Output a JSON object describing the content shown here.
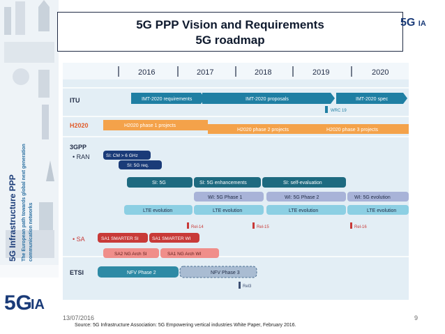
{
  "slide": {
    "title_line1": "5G PPP Vision and Requirements",
    "title_line2": "5G roadmap",
    "date": "13/07/2016",
    "page_number": "9",
    "source": "Source: 5G Infrastructure Association: 5G Empowering vertical industries White Paper, February 2016.",
    "logo_mark": "5G",
    "logo_suffix": "IA",
    "sidebar_tagline": [
      "5G Infrastructure PPP",
      "The European path towards global next generation",
      "communication networks"
    ]
  },
  "roadmap": {
    "years": [
      "2016",
      "2017",
      "2018",
      "2019",
      "2020"
    ],
    "rows": {
      "itu": "ITU",
      "h2020": "H2020",
      "gpp": "3GPP",
      "ran": "• RAN",
      "sa": "• SA",
      "etsi": "ETSI"
    },
    "bars": {
      "imt_requirements": "IMT-2020 requirements",
      "imt_proposals": "IMT-2020 proposals",
      "imt_spec": "IMT-2020 spec",
      "wrc19": "WRC 19",
      "h2020_phase1": "H2020 phase 1 projects",
      "h2020_phase2": "H2020 phase 2 projects",
      "h2020_phase3": "H2020 phase 3 projects",
      "si_cm6": "SI: CM > 6 GHz",
      "si_5g_req": "SI: 5G req.",
      "si_5g": "SI: 5G",
      "si_5g_enh": "SI: 5G enhancements",
      "si_self_eval": "SI: self-evaluation",
      "wi_phase1": "WI: 5G Phase 1",
      "wi_phase2": "WI: 5G Phase 2",
      "wi_evolution": "WI: 5G evolution",
      "lte_evolution": "LTE evolution",
      "rel14": "Rel-14",
      "rel15": "Rel-15",
      "rel16": "Rel-16",
      "sa1_smarter_si": "SA1 SMARTER SI",
      "sa1_smarter_wi": "SA1 SMARTER WI",
      "sa2_ng_arch_si": "SA2 NG Arch SI",
      "sa1_ng_arch_wi": "SA1 NG Arch WI",
      "nfv_phase2": "NFV Phase 2",
      "nfv_phase3": "NFV Phase 3",
      "rel3": "Rel3"
    },
    "colors": {
      "itu_bar": "#1f7fa3",
      "h2020_bar": "#f4a24a",
      "ran_dark": "#1a3b78",
      "ran_teal": "#1e6a80",
      "wi_light": "#a8b3d8",
      "lte": "#8ccfe3",
      "sa_red": "#c83a38",
      "sa_pink": "#f08e8a",
      "etsi": "#2e8aa5",
      "marker": "#c83a38",
      "marker_etsi": "#3d4f73",
      "bg": "#e3eef5"
    }
  }
}
